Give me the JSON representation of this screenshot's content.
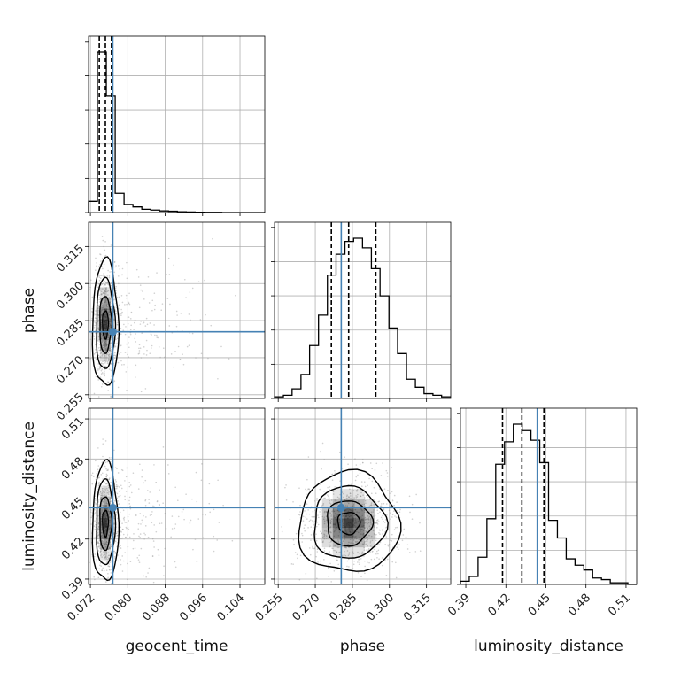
{
  "chart_data": {
    "type": "corner",
    "parameters": [
      "geocent_time",
      "phase",
      "luminosity_distance"
    ],
    "ticks": {
      "geocent_time": [
        "0.072",
        "0.080",
        "0.088",
        "0.096",
        "0.104"
      ],
      "phase": [
        "0.255",
        "0.270",
        "0.285",
        "0.300",
        "0.315"
      ],
      "luminosity_distance": [
        "0.39",
        "0.42",
        "0.45",
        "0.48",
        "0.51"
      ]
    },
    "ranges": {
      "geocent_time": [
        0.0716,
        0.1093
      ],
      "phase": [
        0.2535,
        0.3248
      ],
      "luminosity_distance": [
        0.386,
        0.518
      ]
    },
    "truths": {
      "geocent_time": 0.0768,
      "phase": 0.2805,
      "luminosity_distance": 0.4435
    },
    "quantiles": {
      "geocent_time": [
        0.0739,
        0.0752,
        0.0765
      ],
      "phase": [
        0.2765,
        0.2835,
        0.2945
      ],
      "luminosity_distance": [
        0.4175,
        0.432,
        0.4485
      ]
    },
    "histograms": {
      "geocent_time": {
        "edges": [
          0.0716,
          0.0735,
          0.0754,
          0.0773,
          0.0792,
          0.0811,
          0.083,
          0.0849,
          0.0868,
          0.0887,
          0.0906,
          0.0925,
          0.0944,
          0.0963,
          0.0982,
          0.1001,
          0.102,
          0.1039,
          0.1058,
          0.1077,
          0.1093
        ],
        "counts": [
          0.07,
          1.0,
          0.73,
          0.12,
          0.05,
          0.035,
          0.02,
          0.015,
          0.01,
          0.008,
          0.005,
          0.003,
          0.002,
          0.001,
          0.001,
          0.0,
          0.0,
          0.0,
          0.0,
          0.0
        ]
      },
      "phase": {
        "edges": [
          0.2535,
          0.2571,
          0.2606,
          0.2642,
          0.2677,
          0.2713,
          0.2749,
          0.2784,
          0.282,
          0.2855,
          0.2891,
          0.2927,
          0.2962,
          0.2998,
          0.3033,
          0.3069,
          0.3105,
          0.314,
          0.3176,
          0.3211,
          0.3248
        ],
        "counts": [
          0.01,
          0.02,
          0.06,
          0.15,
          0.33,
          0.52,
          0.77,
          0.9,
          0.98,
          1.0,
          0.94,
          0.81,
          0.64,
          0.44,
          0.28,
          0.12,
          0.07,
          0.03,
          0.02,
          0.01
        ]
      },
      "luminosity_distance": {
        "edges": [
          0.386,
          0.3926,
          0.3992,
          0.4058,
          0.4124,
          0.419,
          0.4256,
          0.4322,
          0.4388,
          0.4454,
          0.452,
          0.4586,
          0.4652,
          0.4718,
          0.4784,
          0.485,
          0.4916,
          0.4982,
          0.5048,
          0.5114,
          0.518
        ],
        "counts": [
          0.02,
          0.05,
          0.17,
          0.41,
          0.75,
          0.89,
          1.0,
          0.96,
          0.9,
          0.76,
          0.4,
          0.29,
          0.16,
          0.12,
          0.09,
          0.04,
          0.03,
          0.01,
          0.01,
          0.0
        ]
      }
    },
    "grid": true,
    "line_colors": {
      "histogram": "#000000",
      "truth": "#4682b4",
      "contour": "#000000",
      "points": "#9a9a9a"
    }
  }
}
